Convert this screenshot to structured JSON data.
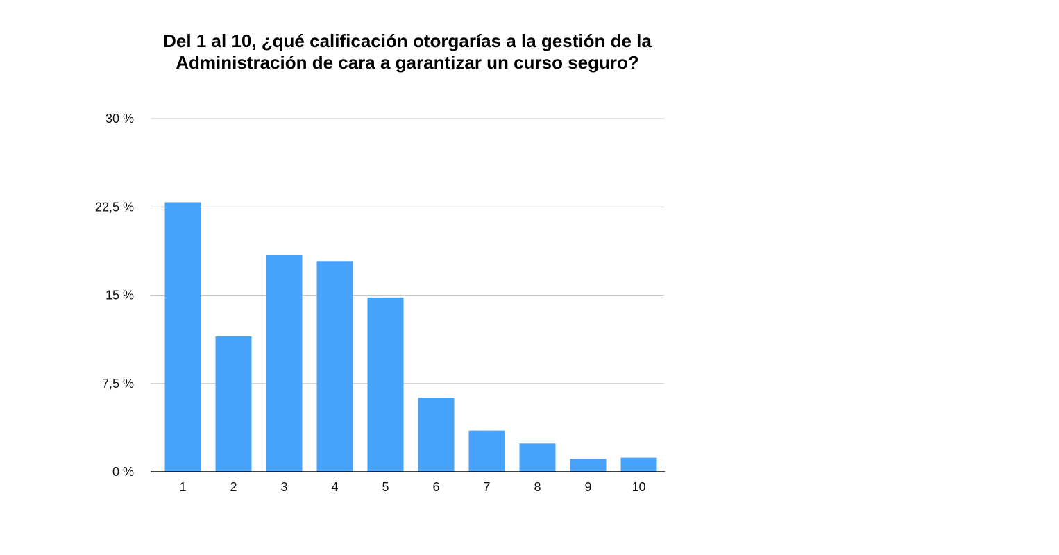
{
  "chart_data": {
    "type": "bar",
    "title": "Del 1 al 10, ¿qué calificación otorgarías a la gestión de la Administración de cara a garantizar un curso seguro?",
    "xlabel": "",
    "ylabel": "",
    "categories": [
      "1",
      "2",
      "3",
      "4",
      "5",
      "6",
      "7",
      "8",
      "9",
      "10"
    ],
    "values": [
      22.9,
      11.5,
      18.4,
      17.9,
      14.8,
      6.3,
      3.5,
      2.4,
      1.1,
      1.2
    ],
    "unit": "%",
    "ylim": [
      0,
      30
    ],
    "yticks": [
      0,
      7.5,
      15,
      22.5,
      30
    ],
    "ytick_labels": [
      "0 %",
      "7,5 %",
      "15 %",
      "22,5 %",
      "30 %"
    ],
    "grid": true,
    "legend": "none",
    "colors": {
      "bar": "#47a2fb",
      "grid": "#c8c8c8",
      "axis": "#000000"
    }
  }
}
